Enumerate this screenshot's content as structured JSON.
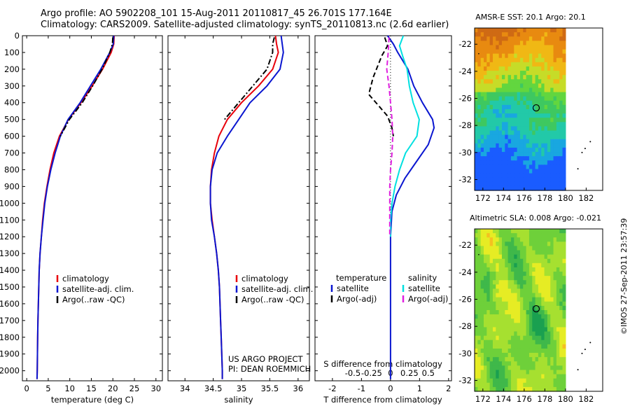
{
  "figure": {
    "title_line1": "Argo profile: AO 5902208_101 15-Aug-2011 20110817_45 26.701S 177.164E",
    "title_line2": "Climatology: CARS2009. Satellite-adjusted climatology: synTS_20110813.nc (2.6d earlier)",
    "credit": "©IMOS 27-Sep-2011 23:57:39"
  },
  "chart_data": [
    {
      "type": "line",
      "name": "temperature profile",
      "xlabel": "temperature (deg C)",
      "xlim": [
        -1,
        31.5
      ],
      "xticks": [
        0,
        5,
        10,
        15,
        20,
        25,
        30
      ],
      "ylim": [
        0,
        2060
      ],
      "yticks": [
        0,
        100,
        200,
        300,
        400,
        500,
        600,
        700,
        800,
        900,
        1000,
        1100,
        1200,
        1300,
        1400,
        1500,
        1600,
        1700,
        1800,
        1900,
        2000
      ],
      "y_inverted": true,
      "legend": [
        "climatology",
        "satellite-adj. clim.",
        "Argo(..raw -QC)"
      ],
      "legend_placement": "lower-middle",
      "series": [
        {
          "name": "climatology",
          "color": "#e8000b",
          "dash": "solid",
          "x": [
            20.3,
            20.2,
            19.6,
            17.6,
            15.2,
            12.6,
            9.7,
            7.6,
            6.3,
            5.4,
            4.7,
            4.1,
            3.7,
            3.4,
            3.1,
            2.9,
            2.8,
            2.7,
            2.6,
            2.55,
            2.5,
            2.45,
            2.4
          ],
          "y": [
            0,
            50,
            100,
            200,
            300,
            400,
            500,
            600,
            700,
            800,
            900,
            1000,
            1100,
            1200,
            1300,
            1400,
            1500,
            1600,
            1700,
            1800,
            1900,
            2000,
            2050
          ]
        },
        {
          "name": "satellite-adj. clim.",
          "color": "#0a16d0",
          "dash": "solid",
          "x": [
            20.2,
            20.1,
            19.3,
            17.2,
            14.8,
            12.4,
            9.6,
            7.8,
            6.6,
            5.6,
            4.8,
            4.2,
            3.8,
            3.4,
            3.1,
            2.9,
            2.8,
            2.7,
            2.6,
            2.55,
            2.5,
            2.45,
            2.4
          ],
          "y": [
            0,
            50,
            100,
            200,
            300,
            400,
            500,
            600,
            700,
            800,
            900,
            1000,
            1100,
            1200,
            1300,
            1400,
            1500,
            1600,
            1700,
            1800,
            1900,
            2000,
            2050
          ]
        },
        {
          "name": "Argo(..raw -QC)",
          "color": "#000000",
          "dash": "dashdot",
          "x": [
            20.0,
            19.9,
            19.3,
            17.5,
            15.3,
            12.9,
            9.9,
            7.8
          ],
          "y": [
            10,
            50,
            100,
            200,
            300,
            400,
            500,
            600
          ]
        }
      ]
    },
    {
      "type": "line",
      "name": "salinity profile",
      "xlabel": "salinity",
      "xlim": [
        33.7,
        36.2
      ],
      "xticks": [
        34,
        34.5,
        35,
        35.5,
        36
      ],
      "ylim": [
        0,
        2060
      ],
      "y_inverted": true,
      "legend": [
        "climatology",
        "satellite-adj. clim.",
        "Argo(..raw -QC)"
      ],
      "legend_placement": "lower-right",
      "annotation": [
        "US ARGO PROJECT",
        "PI: DEAN ROEMMICH"
      ],
      "series": [
        {
          "name": "climatology",
          "color": "#e8000b",
          "dash": "solid",
          "x": [
            35.6,
            35.62,
            35.65,
            35.55,
            35.3,
            35.0,
            34.75,
            34.6,
            34.52,
            34.47,
            34.45,
            34.45,
            34.48,
            34.52,
            34.56,
            34.59,
            34.61,
            34.62,
            34.63,
            34.64,
            34.65,
            34.66,
            34.66
          ],
          "y": [
            0,
            50,
            100,
            200,
            300,
            400,
            500,
            600,
            700,
            800,
            900,
            1000,
            1100,
            1200,
            1300,
            1400,
            1500,
            1600,
            1700,
            1800,
            1900,
            2000,
            2050
          ]
        },
        {
          "name": "satellite-adj. clim.",
          "color": "#0a16d0",
          "dash": "solid",
          "x": [
            35.7,
            35.72,
            35.74,
            35.68,
            35.45,
            35.15,
            34.95,
            34.75,
            34.57,
            34.48,
            34.45,
            34.45,
            34.47,
            34.52,
            34.56,
            34.59,
            34.61,
            34.62,
            34.63,
            34.64,
            34.65,
            34.66,
            34.66
          ],
          "y": [
            0,
            50,
            100,
            200,
            300,
            400,
            500,
            600,
            700,
            800,
            900,
            1000,
            1100,
            1200,
            1300,
            1400,
            1500,
            1600,
            1700,
            1800,
            1900,
            2000,
            2050
          ]
        },
        {
          "name": "Argo(..raw -QC)",
          "color": "#000000",
          "dash": "dashdot",
          "x": [
            35.58,
            35.55,
            35.55,
            35.45,
            35.2,
            34.95,
            34.7
          ],
          "y": [
            10,
            50,
            100,
            200,
            300,
            400,
            500
          ]
        }
      ]
    },
    {
      "type": "line",
      "name": "difference from climatology",
      "xlabel": "T difference from climatology",
      "xlabel_top": "S difference from climatology",
      "xlim": [
        -2.6,
        2.1
      ],
      "xticks_T": [
        -2,
        -1,
        0,
        1,
        2
      ],
      "xticks_S": [
        -0.5,
        -0.25,
        0,
        0.25,
        0.5
      ],
      "xticks_S_labels": [
        "-0.5",
        "-0.25",
        "0",
        "0.25",
        "0.5"
      ],
      "ylim": [
        0,
        2060
      ],
      "y_inverted": true,
      "legend_T_title": "temperature",
      "legend_S_title": "salinity",
      "legend_T": [
        "satellite",
        "Argo(-adj)"
      ],
      "legend_S": [
        "satellite",
        "Argo(-adj)"
      ],
      "series": [
        {
          "name": "T satellite",
          "color": "#0a16d0",
          "dash": "solid",
          "x": [
            -0.1,
            0.1,
            0.25,
            0.6,
            0.8,
            1.1,
            1.45,
            1.5,
            1.3,
            0.9,
            0.5,
            0.2,
            0.05,
            0,
            0,
            0,
            0,
            0,
            0,
            0,
            0
          ],
          "y": [
            0,
            50,
            100,
            200,
            300,
            400,
            500,
            550,
            650,
            750,
            850,
            950,
            1050,
            1200,
            1400,
            1600,
            1800,
            1900,
            2000,
            2050,
            2050
          ]
        },
        {
          "name": "T Argo(-adj)",
          "color": "#000000",
          "dash": "dashed",
          "x": [
            -0.2,
            -0.1,
            -0.3,
            -0.6,
            -0.75,
            -0.4,
            -0.1,
            0.05,
            0.1
          ],
          "y": [
            10,
            60,
            120,
            250,
            350,
            420,
            480,
            550,
            600
          ]
        },
        {
          "name": "S satellite",
          "color": "#00e0e0",
          "dash": "solid",
          "x": [
            0.17,
            0.12,
            0.16,
            0.22,
            0.25,
            0.3,
            0.38,
            0.35,
            0.2,
            0.12,
            0.06,
            0.02,
            0,
            0
          ],
          "y": [
            0,
            60,
            120,
            200,
            300,
            400,
            500,
            600,
            700,
            800,
            900,
            1000,
            1100,
            1200
          ]
        },
        {
          "name": "S Argo(-adj)",
          "color": "#e020e0",
          "dash": "dashed",
          "x": [
            -0.02,
            -0.03,
            -0.05,
            -0.02,
            0.0,
            0.02,
            0.03,
            0.02,
            0.0,
            -0.01,
            -0.01,
            -0.01,
            -0.01
          ],
          "y": [
            10,
            100,
            200,
            300,
            400,
            500,
            600,
            700,
            800,
            900,
            1000,
            1100,
            1200
          ]
        }
      ]
    },
    {
      "type": "heatmap",
      "name": "AMSR-E SST map",
      "title": "AMSR-E SST: 20.1  Argo: 20.1",
      "xticks": [
        172,
        174,
        176,
        178,
        180,
        182
      ],
      "yticks": [
        -22,
        -24,
        -26,
        -28,
        -30,
        -32
      ],
      "xlim": [
        171.2,
        183.6
      ],
      "ylim": [
        -32.8,
        -20.8
      ],
      "data_extent": {
        "lon": [
          171.2,
          180
        ],
        "lat": [
          -32.8,
          -20.8
        ]
      },
      "argo_position": {
        "lon": 177.164,
        "lat": -26.701
      },
      "colors": [
        "#1a5cff",
        "#19a7e0",
        "#22c9a8",
        "#3ec860",
        "#62d63f",
        "#c6dc28",
        "#f0b814",
        "#e88a10",
        "#cf6a14"
      ]
    },
    {
      "type": "heatmap",
      "name": "Altimetric SLA map",
      "title": "Altimetric SLA: 0.008  Argo: -0.021",
      "xticks": [
        172,
        174,
        176,
        178,
        180,
        182
      ],
      "yticks": [
        -22,
        -24,
        -26,
        -28,
        -30,
        -32
      ],
      "xlim": [
        171.2,
        183.6
      ],
      "ylim": [
        -32.8,
        -20.8
      ],
      "data_extent": {
        "lon": [
          171.2,
          180
        ],
        "lat": [
          -32.8,
          -20.8
        ]
      },
      "argo_position": {
        "lon": 177.164,
        "lat": -26.701
      },
      "colors": [
        "#1aa050",
        "#3fb84a",
        "#6ed03a",
        "#a6e030",
        "#e6ec24",
        "#f5c020",
        "#f09a26"
      ]
    }
  ]
}
